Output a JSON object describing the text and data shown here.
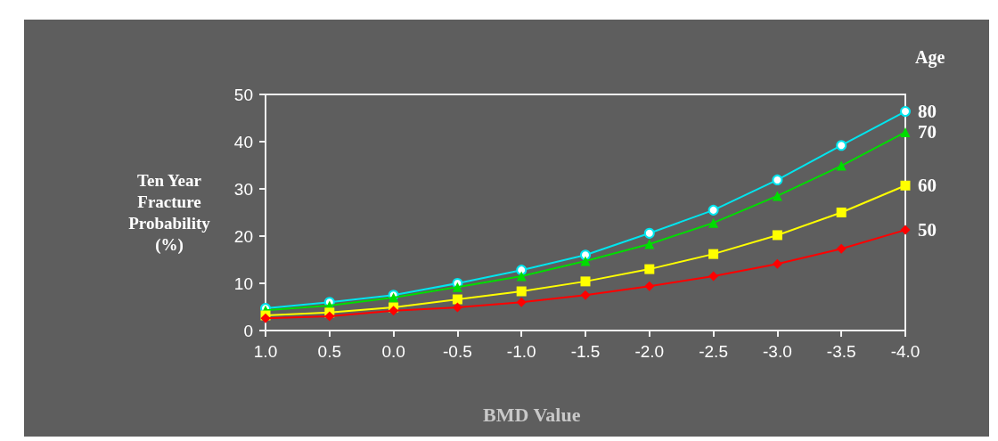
{
  "chart_data": {
    "type": "line",
    "xlabel": "BMD Value",
    "ylabel": "Ten Year\nFracture\nProbability\n(%)",
    "legend_title": "Age",
    "categories": [
      "1.0",
      "0.5",
      "0.0",
      "-0.5",
      "-1.0",
      "-1.5",
      "-2.0",
      "-2.5",
      "-3.0",
      "-3.5",
      "-4.0"
    ],
    "ylim": [
      0,
      50
    ],
    "yticks": [
      0,
      10,
      20,
      30,
      40,
      50
    ],
    "grid": false,
    "legend": false,
    "series": [
      {
        "name": "80",
        "color": "#00e5ee",
        "marker": "circle",
        "values": [
          4.7,
          6.0,
          7.5,
          10,
          12.8,
          16,
          20.6,
          25.5,
          31.9,
          39.2,
          46.4
        ]
      },
      {
        "name": "70",
        "color": "#00dd00",
        "marker": "triangle",
        "values": [
          4.3,
          5.3,
          7,
          9.2,
          11.5,
          14.7,
          18.3,
          22.8,
          28.5,
          34.9,
          42
        ]
      },
      {
        "name": "60",
        "color": "#ffff00",
        "marker": "square",
        "values": [
          3.2,
          3.8,
          4.9,
          6.6,
          8.3,
          10.4,
          13,
          16.2,
          20.2,
          25,
          30.7
        ]
      },
      {
        "name": "50",
        "color": "#ff0000",
        "marker": "diamond",
        "values": [
          2.6,
          3,
          4.2,
          4.9,
          6,
          7.5,
          9.4,
          11.5,
          14.1,
          17.3,
          21.3
        ]
      }
    ]
  }
}
